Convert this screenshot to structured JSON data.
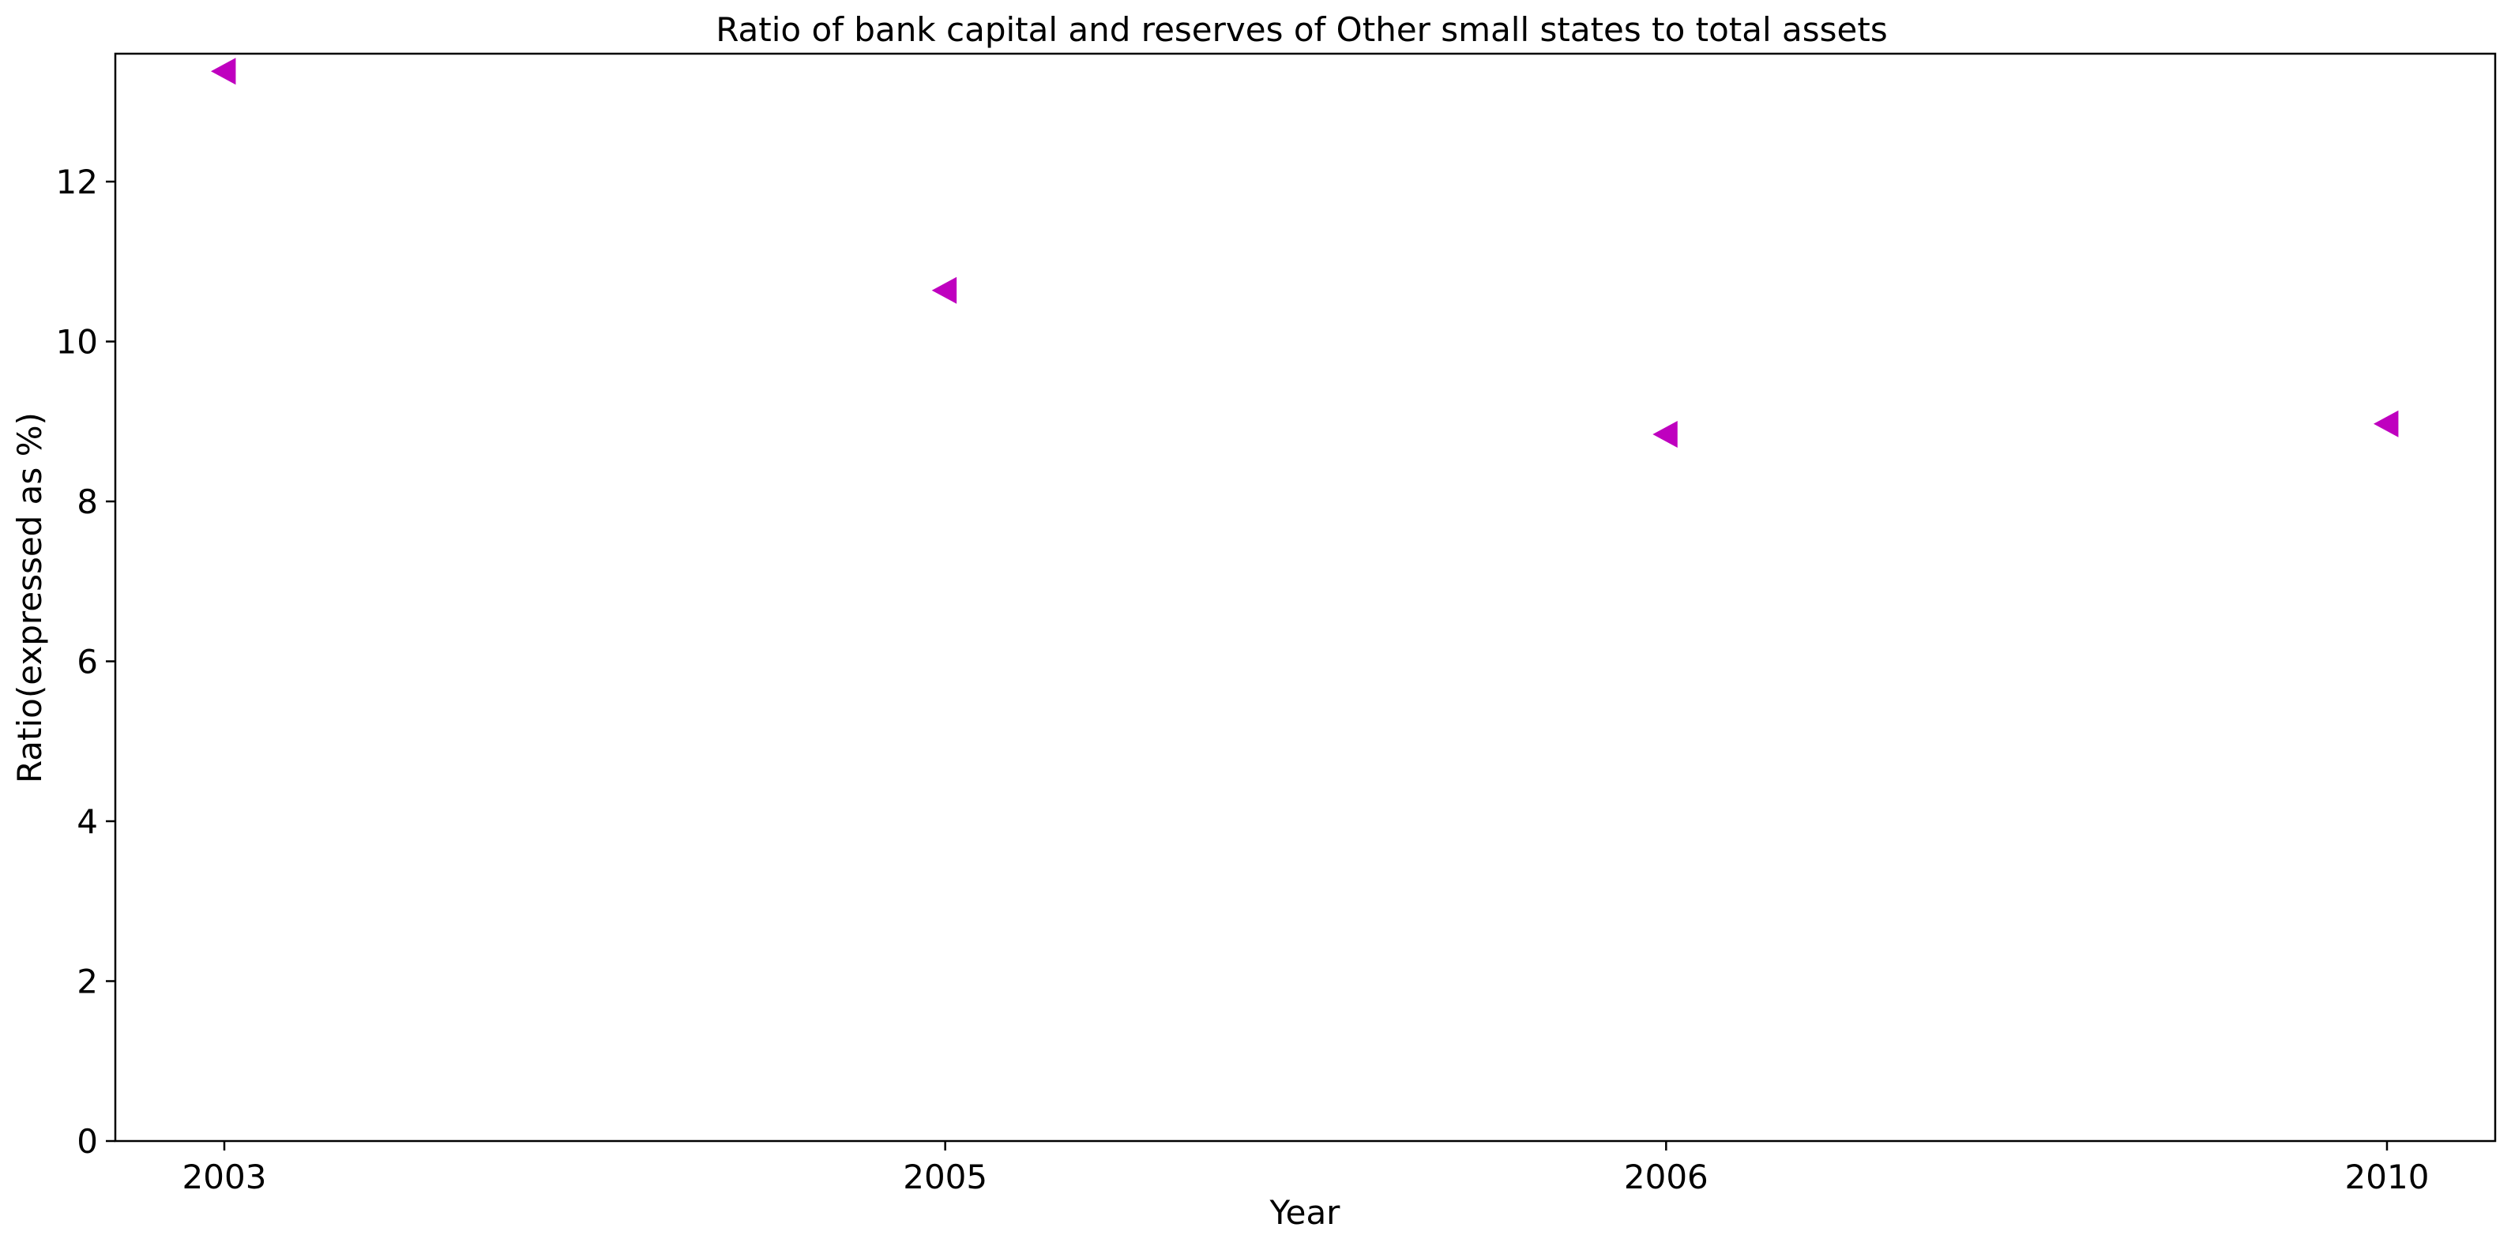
{
  "chart_data": {
    "type": "scatter",
    "title": "Ratio of bank capital and reserves of Other small states to total assets",
    "xlabel": "Year",
    "ylabel": "Ratio(expressed as %)",
    "categories": [
      "2003",
      "2005",
      "2006",
      "2010"
    ],
    "values": [
      13.38,
      10.64,
      8.84,
      8.97
    ],
    "ylim": [
      0,
      13.6
    ],
    "yticks": [
      0,
      2,
      4,
      6,
      8,
      10,
      12
    ],
    "marker": "triangle-left",
    "marker_color": "#bf00bf",
    "grid": false,
    "legend": "none"
  }
}
